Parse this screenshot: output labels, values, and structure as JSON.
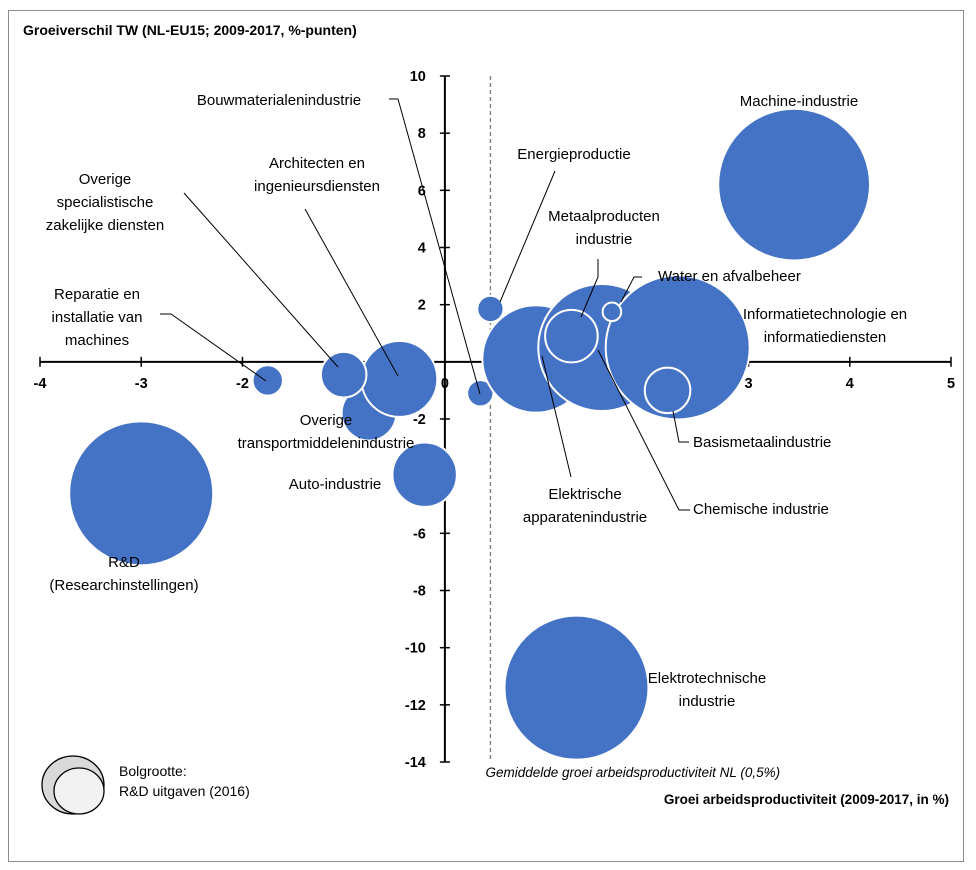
{
  "chart_data": {
    "type": "scatter",
    "title": "Groeiverschil TW (NL-EU15; 2009-2017, %-punten)",
    "xlabel": "Groei arbeidsproductiviteit (2009-2017,  in %)",
    "ylabel": "Groeiverschil TW (NL-EU15; 2009-2017, %-punten)",
    "xlim": [
      -4,
      5
    ],
    "ylim": [
      -14,
      10
    ],
    "x_ticks": [
      "-4",
      "-3",
      "-2",
      "-1",
      "0",
      "1",
      "2",
      "3",
      "4",
      "5"
    ],
    "y_ticks": [
      "10",
      "8",
      "6",
      "4",
      "2",
      "0",
      "-2",
      "-4",
      "-6",
      "-8",
      "-10",
      "-12",
      "-14"
    ],
    "grid": false,
    "bubble_size_measure": "R&D uitgaven (2016)",
    "reference_line": {
      "x": 0.45,
      "label": "Gemiddelde groei arbeidsproductiviteit NL (0,5%)"
    },
    "legend": {
      "line1": "Bolgrootte:",
      "line2": "R&D uitgaven (2016)",
      "placement": "bottom-left"
    },
    "color": "#4472c4",
    "points": [
      {
        "label": "Machine-industrie",
        "x": 3.45,
        "y": 6.2,
        "size": 10
      },
      {
        "label": "Informatietechnologie en informatiediensten",
        "x": 2.3,
        "y": 0.5,
        "size": 9
      },
      {
        "label": "Chemische industrie",
        "x": 1.55,
        "y": 0.5,
        "size": 7
      },
      {
        "label": "Elektrische apparatenindustrie",
        "x": 0.9,
        "y": 0.1,
        "size": 5
      },
      {
        "label": "Metaalproducten industrie",
        "x": 1.25,
        "y": 0.9,
        "size": 1.2
      },
      {
        "label": "Water en afvalbeheer",
        "x": 1.65,
        "y": 1.75,
        "size": 0.15
      },
      {
        "label": "Basismetaalindustrie",
        "x": 2.2,
        "y": -1.0,
        "size": 0.9
      },
      {
        "label": "Energieproductie",
        "x": 0.45,
        "y": 1.85,
        "size": 0.3
      },
      {
        "label": "Bouwmaterialenindustrie",
        "x": 0.35,
        "y": -1.1,
        "size": 0.3
      },
      {
        "label": "Architecten en ingenieursdiensten",
        "x": -0.45,
        "y": -0.6,
        "size": 2.5
      },
      {
        "label": "Overige specialistische zakelijke diensten",
        "x": -1.0,
        "y": -0.45,
        "size": 0.9
      },
      {
        "label": "Reparatie en installatie van machines",
        "x": -1.75,
        "y": -0.65,
        "size": 0.4
      },
      {
        "label": "Overige transportmiddelenindustrie",
        "x": -0.75,
        "y": -1.8,
        "size": 1.3
      },
      {
        "label": "Auto-industrie",
        "x": -0.2,
        "y": -3.95,
        "size": 1.8
      },
      {
        "label": "R&D (Researchinstellingen)",
        "x": -3.0,
        "y": -4.6,
        "size": 9
      },
      {
        "label": "Elektrotechnische industrie",
        "x": 1.3,
        "y": -11.4,
        "size": 9
      }
    ]
  },
  "labels": {
    "machine": [
      "Machine-industrie"
    ],
    "it": [
      "Informatietechnologie en",
      "informatiediensten"
    ],
    "chem": [
      "Chemische industrie"
    ],
    "elec_app": [
      "Elektrische",
      "apparatenindustrie"
    ],
    "metaal": [
      "Metaalproducten",
      "industrie"
    ],
    "water": [
      "Water en afvalbeheer"
    ],
    "basis": [
      "Basismetaalindustrie"
    ],
    "energie": [
      "Energieproductie"
    ],
    "bouw": [
      "Bouwmaterialenindustrie"
    ],
    "archi": [
      "Architecten en",
      "ingenieursdiensten"
    ],
    "overig_zak": [
      "Overige",
      "specialistische",
      "zakelijke diensten"
    ],
    "reparatie": [
      "Reparatie en",
      "installatie van",
      "machines"
    ],
    "transport": [
      "Overige",
      "transportmiddelenindustrie"
    ],
    "auto": [
      "Auto-industrie"
    ],
    "rd": [
      "R&D",
      "(Researchinstellingen)"
    ],
    "elektrotech": [
      "Elektrotechnische",
      "industrie"
    ]
  }
}
